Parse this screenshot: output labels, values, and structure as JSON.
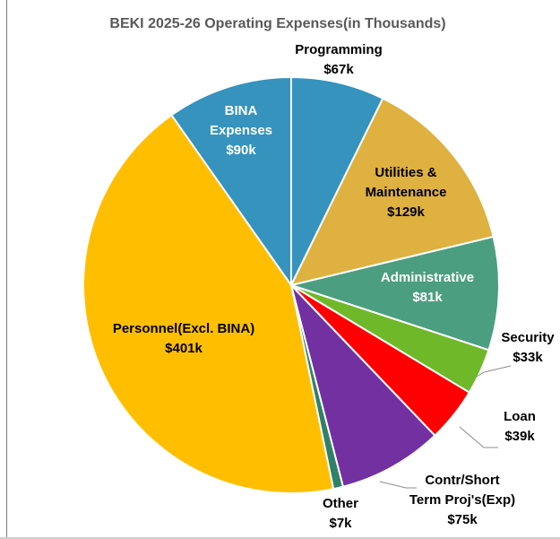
{
  "chart_data": {
    "type": "pie",
    "title": "BEKI 2025-26 Operating Expenses(in Thousands)",
    "slices": [
      {
        "lines": [
          "Programming",
          "$67k"
        ],
        "value": 67,
        "color": "#3593be",
        "text_color": "#000000"
      },
      {
        "lines": [
          "Utilities &",
          "Maintenance",
          "$129k"
        ],
        "value": 129,
        "color": "#deb140",
        "text_color": "#000000"
      },
      {
        "lines": [
          "Administrative",
          "$81k"
        ],
        "value": 81,
        "color": "#4c9e80",
        "text_color": "#ffffff"
      },
      {
        "lines": [
          "Security",
          "$33k"
        ],
        "value": 33,
        "color": "#6fb82a",
        "text_color": "#000000"
      },
      {
        "lines": [
          "Loan",
          "$39k"
        ],
        "value": 39,
        "color": "#ff0000",
        "text_color": "#000000"
      },
      {
        "lines": [
          "Contr/Short",
          "Term Proj's(Exp)",
          "$75k"
        ],
        "value": 75,
        "color": "#7230a0",
        "text_color": "#000000"
      },
      {
        "lines": [
          "Other",
          "$7k"
        ],
        "value": 7,
        "color": "#30806a",
        "text_color": "#000000"
      },
      {
        "lines": [
          "Personnel(Excl. BINA)",
          "$401k"
        ],
        "value": 401,
        "color": "#ffbf00",
        "text_color": "#000000"
      },
      {
        "lines": [
          "BINA",
          "Expenses",
          "$90k"
        ],
        "value": 90,
        "color": "#3593be",
        "text_color": "#ffffff"
      }
    ]
  }
}
